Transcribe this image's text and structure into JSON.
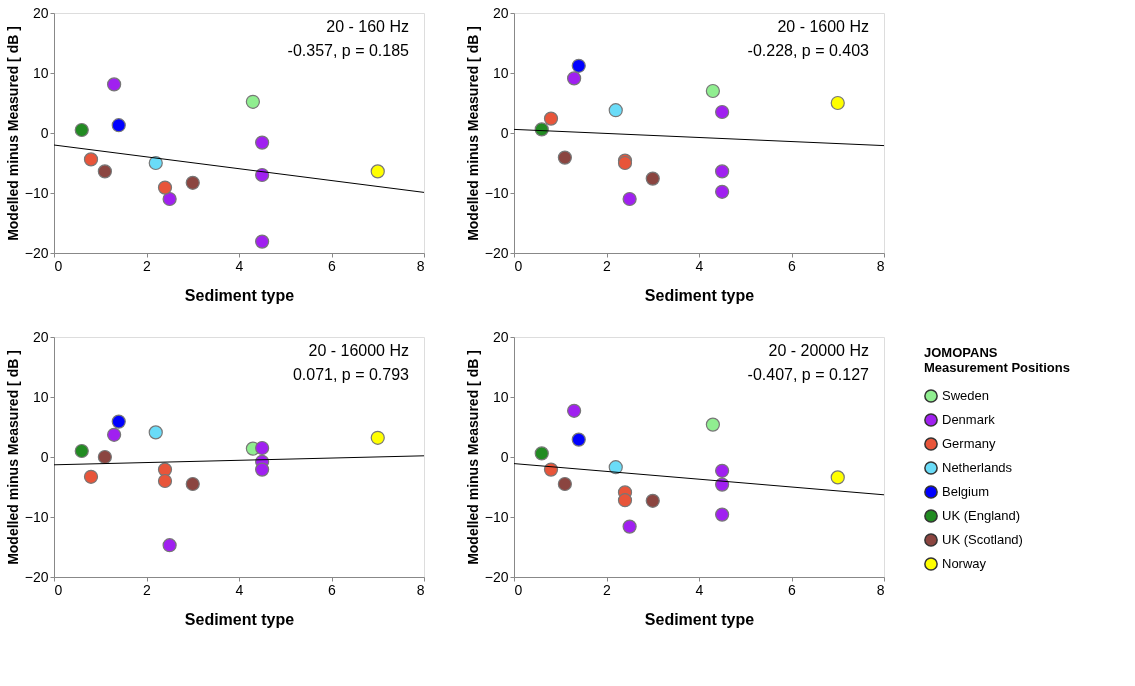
{
  "chart_data": [
    {
      "type": "scatter",
      "xlabel": "Sediment type",
      "ylabel": "Modelled minus Measured [ dB ]",
      "annotations": [
        "20 - 160 Hz",
        "-0.357, p = 0.185"
      ],
      "xlim": [
        0,
        8
      ],
      "xticks": [
        0,
        2,
        4,
        6,
        8
      ],
      "ylim": [
        -20,
        20
      ],
      "yticks": [
        -20,
        -10,
        0,
        10,
        20
      ],
      "grid": false,
      "marker": "circle",
      "series": [
        {
          "color": "#90ee90",
          "x": [
            4.3
          ],
          "values": [
            5.2
          ]
        },
        {
          "color": "#a020f0",
          "x": [
            1.3,
            2.5,
            4.5,
            4.5,
            4.5
          ],
          "values": [
            8.1,
            -11,
            -1.6,
            -7,
            -18.1
          ]
        },
        {
          "color": "#e8553a",
          "x": [
            0.8,
            2.4
          ],
          "values": [
            -4.4,
            -9.1
          ]
        },
        {
          "color": "#6adcf8",
          "x": [
            2.2
          ],
          "values": [
            -5
          ]
        },
        {
          "color": "#0000ff",
          "x": [
            1.4
          ],
          "values": [
            1.3
          ]
        },
        {
          "color": "#228b22",
          "x": [
            0.6
          ],
          "values": [
            0.5
          ]
        },
        {
          "color": "#8b4540",
          "x": [
            1.1,
            3.0
          ],
          "values": [
            -6.4,
            -8.3
          ]
        },
        {
          "color": "#ffff00",
          "x": [
            7
          ],
          "values": [
            -6.4
          ]
        },
        {
          "type": "line",
          "marker": "none",
          "color": "#000000",
          "x": [
            0,
            8
          ],
          "values": [
            -2,
            -9.9
          ]
        }
      ]
    },
    {
      "type": "scatter",
      "xlabel": "Sediment type",
      "ylabel": "Modelled minus Measured [ dB ]",
      "annotations": [
        "20 - 1600 Hz",
        "-0.228, p = 0.403"
      ],
      "xlim": [
        0,
        8
      ],
      "xticks": [
        0,
        2,
        4,
        6,
        8
      ],
      "ylim": [
        -20,
        20
      ],
      "yticks": [
        -20,
        -10,
        0,
        10,
        20
      ],
      "grid": false,
      "marker": "circle",
      "series": [
        {
          "color": "#90ee90",
          "x": [
            4.3
          ],
          "values": [
            7
          ]
        },
        {
          "color": "#a020f0",
          "x": [
            1.3,
            2.5,
            4.5,
            4.5,
            4.5
          ],
          "values": [
            9.1,
            -11,
            3.5,
            -6.4,
            -9.8
          ]
        },
        {
          "color": "#e8553a",
          "x": [
            0.8,
            2.4,
            2.4
          ],
          "values": [
            2.4,
            -4.6,
            -5
          ]
        },
        {
          "color": "#6adcf8",
          "x": [
            2.2
          ],
          "values": [
            3.8
          ]
        },
        {
          "color": "#0000ff",
          "x": [
            1.4
          ],
          "values": [
            11.2
          ]
        },
        {
          "color": "#228b22",
          "x": [
            0.6
          ],
          "values": [
            0.6
          ]
        },
        {
          "color": "#8b4540",
          "x": [
            1.1,
            3.0
          ],
          "values": [
            -4.1,
            -7.6
          ]
        },
        {
          "color": "#ffff00",
          "x": [
            7
          ],
          "values": [
            5
          ]
        },
        {
          "type": "line",
          "marker": "none",
          "color": "#000000",
          "x": [
            0,
            8
          ],
          "values": [
            0.6,
            -2.1
          ]
        }
      ]
    },
    {
      "type": "scatter",
      "xlabel": "Sediment type",
      "ylabel": "Modelled minus Measured [ dB ]",
      "annotations": [
        "20 - 16000 Hz",
        "0.071, p = 0.793"
      ],
      "xlim": [
        0,
        8
      ],
      "xticks": [
        0,
        2,
        4,
        6,
        8
      ],
      "ylim": [
        -20,
        20
      ],
      "yticks": [
        -20,
        -10,
        0,
        10,
        20
      ],
      "grid": false,
      "marker": "circle",
      "series": [
        {
          "color": "#90ee90",
          "x": [
            4.3
          ],
          "values": [
            1.4
          ]
        },
        {
          "color": "#a020f0",
          "x": [
            1.3,
            2.5,
            4.5,
            4.5,
            4.5
          ],
          "values": [
            3.7,
            -14.7,
            1.5,
            -0.8,
            -2.1
          ]
        },
        {
          "color": "#e8553a",
          "x": [
            0.8,
            2.4,
            2.4
          ],
          "values": [
            -3.3,
            -2.1,
            -4
          ]
        },
        {
          "color": "#6adcf8",
          "x": [
            2.2
          ],
          "values": [
            4.1
          ]
        },
        {
          "color": "#0000ff",
          "x": [
            1.4
          ],
          "values": [
            5.9
          ]
        },
        {
          "color": "#228b22",
          "x": [
            0.6
          ],
          "values": [
            1
          ]
        },
        {
          "color": "#8b4540",
          "x": [
            1.1,
            3.0
          ],
          "values": [
            0,
            -4.5
          ]
        },
        {
          "color": "#ffff00",
          "x": [
            7
          ],
          "values": [
            3.2
          ]
        },
        {
          "type": "line",
          "marker": "none",
          "color": "#000000",
          "x": [
            0,
            8
          ],
          "values": [
            -1.3,
            0.2
          ]
        }
      ]
    },
    {
      "type": "scatter",
      "xlabel": "Sediment type",
      "ylabel": "Modelled minus Measured [ dB ]",
      "annotations": [
        "20 - 20000 Hz",
        "-0.407, p = 0.127"
      ],
      "xlim": [
        0,
        8
      ],
      "xticks": [
        0,
        2,
        4,
        6,
        8
      ],
      "ylim": [
        -20,
        20
      ],
      "yticks": [
        -20,
        -10,
        0,
        10,
        20
      ],
      "grid": false,
      "legend": "right",
      "legend_title": "JOMOPANS Measurement Positions",
      "marker": "circle",
      "series": [
        {
          "name": "Sweden",
          "color": "#90ee90",
          "x": [
            4.3
          ],
          "values": [
            5.4
          ]
        },
        {
          "name": "Denmark",
          "color": "#a020f0",
          "x": [
            1.3,
            2.5,
            4.5,
            4.5,
            4.5
          ],
          "values": [
            7.7,
            -11.6,
            -2.3,
            -4.6,
            -9.6
          ]
        },
        {
          "name": "Germany",
          "color": "#e8553a",
          "x": [
            0.8,
            2.4,
            2.4
          ],
          "values": [
            -2.1,
            -5.9,
            -7.2
          ]
        },
        {
          "name": "Netherlands",
          "color": "#6adcf8",
          "x": [
            2.2
          ],
          "values": [
            -1.7
          ]
        },
        {
          "name": "Belgium",
          "color": "#0000ff",
          "x": [
            1.4
          ],
          "values": [
            2.9
          ]
        },
        {
          "name": "UK (England)",
          "color": "#228b22",
          "x": [
            0.6
          ],
          "values": [
            0.6
          ]
        },
        {
          "name": "UK (Scotland)",
          "color": "#8b4540",
          "x": [
            1.1,
            3.0
          ],
          "values": [
            -4.5,
            -7.3
          ]
        },
        {
          "name": "Norway",
          "color": "#ffff00",
          "x": [
            7
          ],
          "values": [
            -3.4
          ]
        },
        {
          "type": "line",
          "marker": "none",
          "color": "#000000",
          "x": [
            0,
            8
          ],
          "values": [
            -1.1,
            -6.3
          ]
        }
      ]
    }
  ]
}
